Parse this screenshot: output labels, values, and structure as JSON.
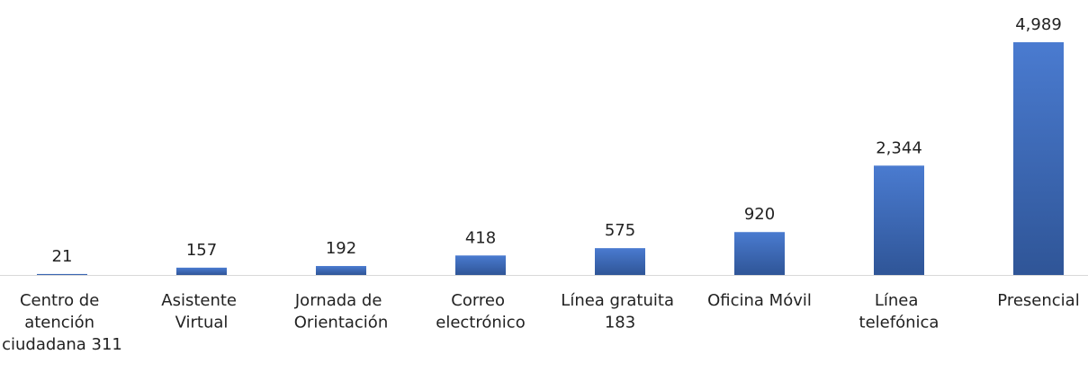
{
  "chart_data": {
    "type": "bar",
    "categories": [
      "Centro de atención ciudadana 311",
      "Asistente Virtual",
      "Jornada de Orientación",
      "Correo electrónico",
      "Línea gratuita 183",
      "Oficina Móvil",
      "Línea telefónica",
      "Presencial"
    ],
    "values": [
      21,
      157,
      192,
      418,
      575,
      920,
      2344,
      4989
    ],
    "value_labels": [
      "21",
      "157",
      "192",
      "418",
      "575",
      "920",
      "2,344",
      "4,989"
    ],
    "color": "#4472c4"
  }
}
